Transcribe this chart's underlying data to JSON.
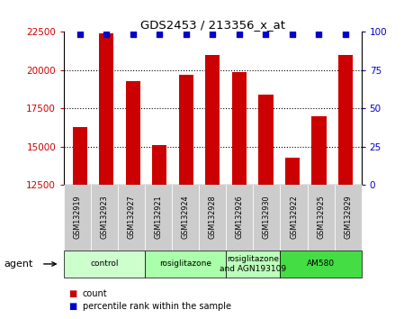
{
  "title": "GDS2453 / 213356_x_at",
  "samples": [
    "GSM132919",
    "GSM132923",
    "GSM132927",
    "GSM132921",
    "GSM132924",
    "GSM132928",
    "GSM132926",
    "GSM132930",
    "GSM132922",
    "GSM132925",
    "GSM132929"
  ],
  "counts": [
    16300,
    22400,
    19300,
    15100,
    19700,
    21000,
    19900,
    18400,
    14300,
    17000,
    21000
  ],
  "ylim": [
    12500,
    22500
  ],
  "yticks": [
    12500,
    15000,
    17500,
    20000,
    22500
  ],
  "right_yticks": [
    0,
    25,
    50,
    75,
    100
  ],
  "bar_color": "#cc0000",
  "dot_color": "#0000cc",
  "groups": [
    {
      "label": "control",
      "start": 0,
      "end": 2,
      "color": "#ccffcc"
    },
    {
      "label": "rosiglitazone",
      "start": 3,
      "end": 5,
      "color": "#aaffaa"
    },
    {
      "label": "rosiglitazone\nand AGN193109",
      "start": 6,
      "end": 7,
      "color": "#bbffbb"
    },
    {
      "label": "AM580",
      "start": 8,
      "end": 10,
      "color": "#44dd44"
    }
  ],
  "agent_label": "agent",
  "legend_count_label": "count",
  "legend_pct_label": "percentile rank within the sample",
  "background_color": "#ffffff",
  "sample_box_color": "#cccccc",
  "sample_box_edge": "#999999"
}
